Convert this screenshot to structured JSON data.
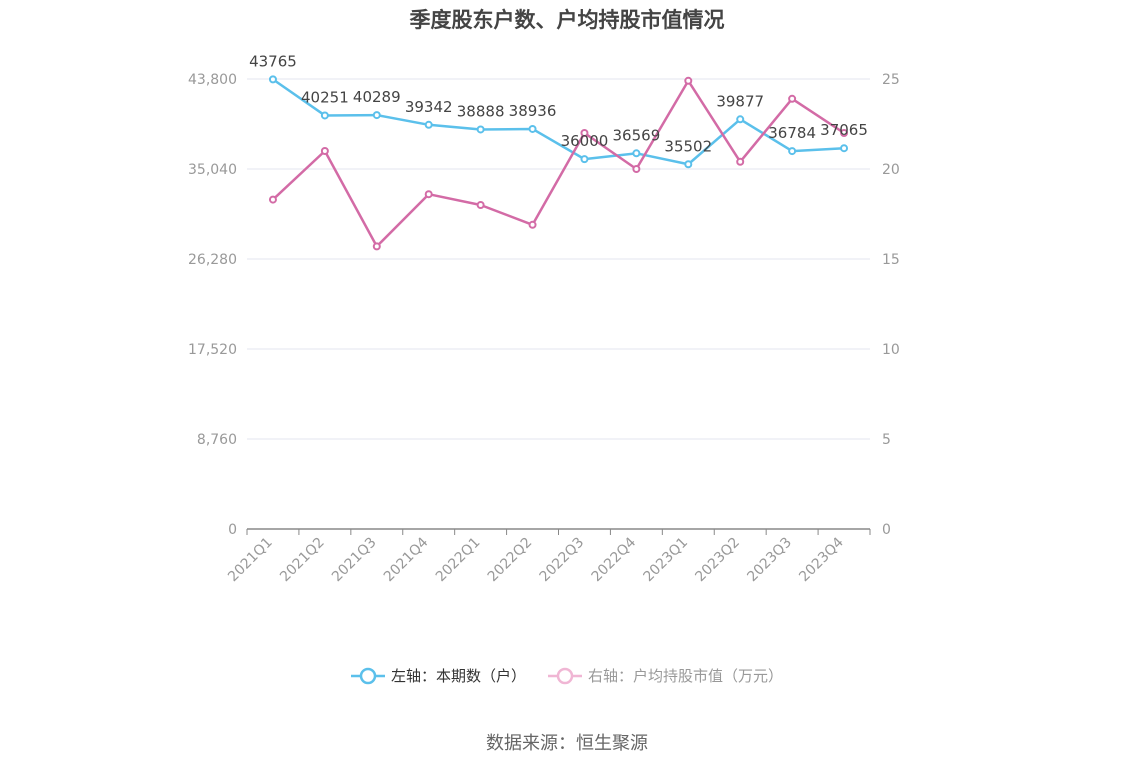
{
  "title": "季度股东户数、户均持股市值情况",
  "source": "数据来源：恒生聚源",
  "legend": {
    "left_label": "左轴：本期数（户）",
    "right_label": "右轴：户均持股市值（万元）"
  },
  "colors": {
    "series_left": "#5bc0eb",
    "series_right": "#d36ba6",
    "grid": "#e3e6ef",
    "axis": "#888888",
    "tick_text": "#999999",
    "label_text": "#444444"
  },
  "chart_data": {
    "type": "line",
    "title": "季度股东户数、户均持股市值情况",
    "categories": [
      "2021Q1",
      "2021Q2",
      "2021Q3",
      "2021Q4",
      "2022Q1",
      "2022Q2",
      "2022Q3",
      "2022Q4",
      "2023Q1",
      "2023Q2",
      "2023Q3",
      "2023Q4"
    ],
    "series": [
      {
        "name": "左轴：本期数（户）",
        "axis": "left",
        "values": [
          43765,
          40251,
          40289,
          39342,
          38888,
          38936,
          36000,
          36569,
          35502,
          39877,
          36784,
          37065
        ]
      },
      {
        "name": "右轴：户均持股市值（万元）",
        "axis": "right",
        "values": [
          18.3,
          21.0,
          15.7,
          18.6,
          18.0,
          16.9,
          22.0,
          20.0,
          24.9,
          20.4,
          23.9,
          22.0
        ]
      }
    ],
    "y_left": {
      "min": 0,
      "max": 43800,
      "ticks": [
        0,
        8760,
        17520,
        26280,
        35040,
        43800
      ],
      "tick_labels": [
        "0",
        "8,760",
        "17,520",
        "26,280",
        "35,040",
        "43,800"
      ]
    },
    "y_right": {
      "min": 0,
      "max": 25,
      "ticks": [
        0,
        5,
        10,
        15,
        20,
        25
      ],
      "tick_labels": [
        "0",
        "5",
        "10",
        "15",
        "20",
        "25"
      ]
    },
    "data_labels_series": 0,
    "grid": true,
    "legend_position": "bottom"
  }
}
